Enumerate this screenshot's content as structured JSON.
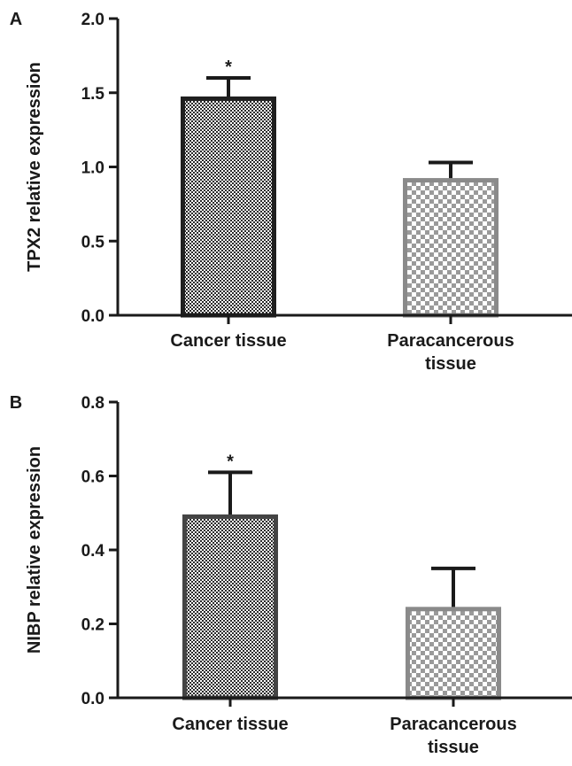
{
  "chart_data": [
    {
      "type": "bar",
      "panel_label": "A",
      "ylabel": "TPX2 relative expression",
      "ylim": [
        0,
        2.0
      ],
      "yticks": [
        "0.0",
        "0.5",
        "1.0",
        "1.5",
        "2.0"
      ],
      "ytick_values": [
        0,
        0.5,
        1.0,
        1.5,
        2.0
      ],
      "categories": [
        [
          "Cancer tissue"
        ],
        [
          "Paracancerous",
          "tissue"
        ]
      ],
      "values": [
        1.46,
        0.91
      ],
      "errors": [
        0.14,
        0.12
      ],
      "significance": [
        "*",
        ""
      ],
      "bar_colors": [
        "#1f1f1f",
        "#8a8a8a"
      ]
    },
    {
      "type": "bar",
      "panel_label": "B",
      "ylabel": "NIBP relative expression",
      "ylim": [
        0,
        0.8
      ],
      "yticks": [
        "0.0",
        "0.2",
        "0.4",
        "0.6",
        "0.8"
      ],
      "ytick_values": [
        0,
        0.2,
        0.4,
        0.6,
        0.8
      ],
      "categories": [
        [
          "Cancer tissue"
        ],
        [
          "Paracancerous",
          "tissue"
        ]
      ],
      "values": [
        0.49,
        0.24
      ],
      "errors": [
        0.12,
        0.11
      ],
      "significance": [
        "*",
        ""
      ],
      "bar_colors": [
        "#444444",
        "#8a8a8a"
      ]
    }
  ]
}
